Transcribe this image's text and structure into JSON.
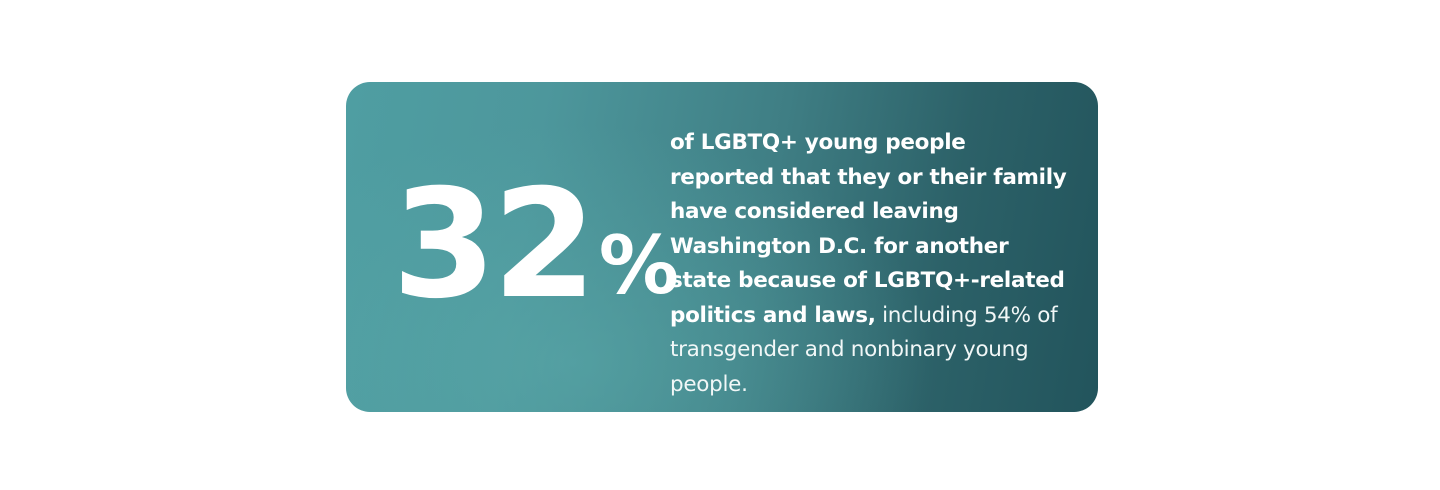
{
  "stat": {
    "value": "32",
    "unit": "%",
    "highlight": "of LGBTQ+ young people reported that they or their family have considered leaving Washington D.C. for another state because of LGBTQ+-related politics and laws,",
    "detail": "including 54% of transgender and nonbinary young people."
  },
  "colors": {
    "card_gradient_start": "#4f9ea2",
    "card_gradient_end": "#22545c",
    "text": "#ffffff",
    "page_background": "#ffffff"
  }
}
